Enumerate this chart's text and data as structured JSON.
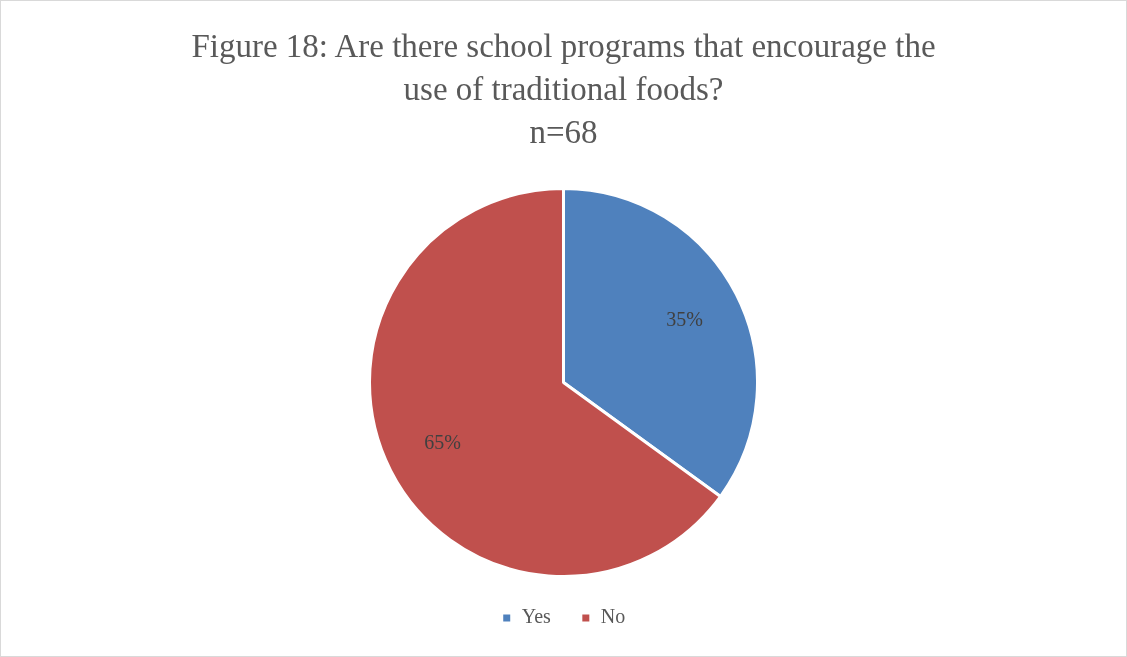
{
  "chart_data": {
    "type": "pie",
    "title": "Figure 18: Are there school programs that encourage the use of traditional foods?",
    "subtitle": "n=68",
    "categories": [
      "Yes",
      "No"
    ],
    "values": [
      35,
      65
    ],
    "colors": [
      "#4f81bd",
      "#c0504d"
    ],
    "value_labels": [
      "35%",
      "65%"
    ],
    "legend": "bottom"
  }
}
